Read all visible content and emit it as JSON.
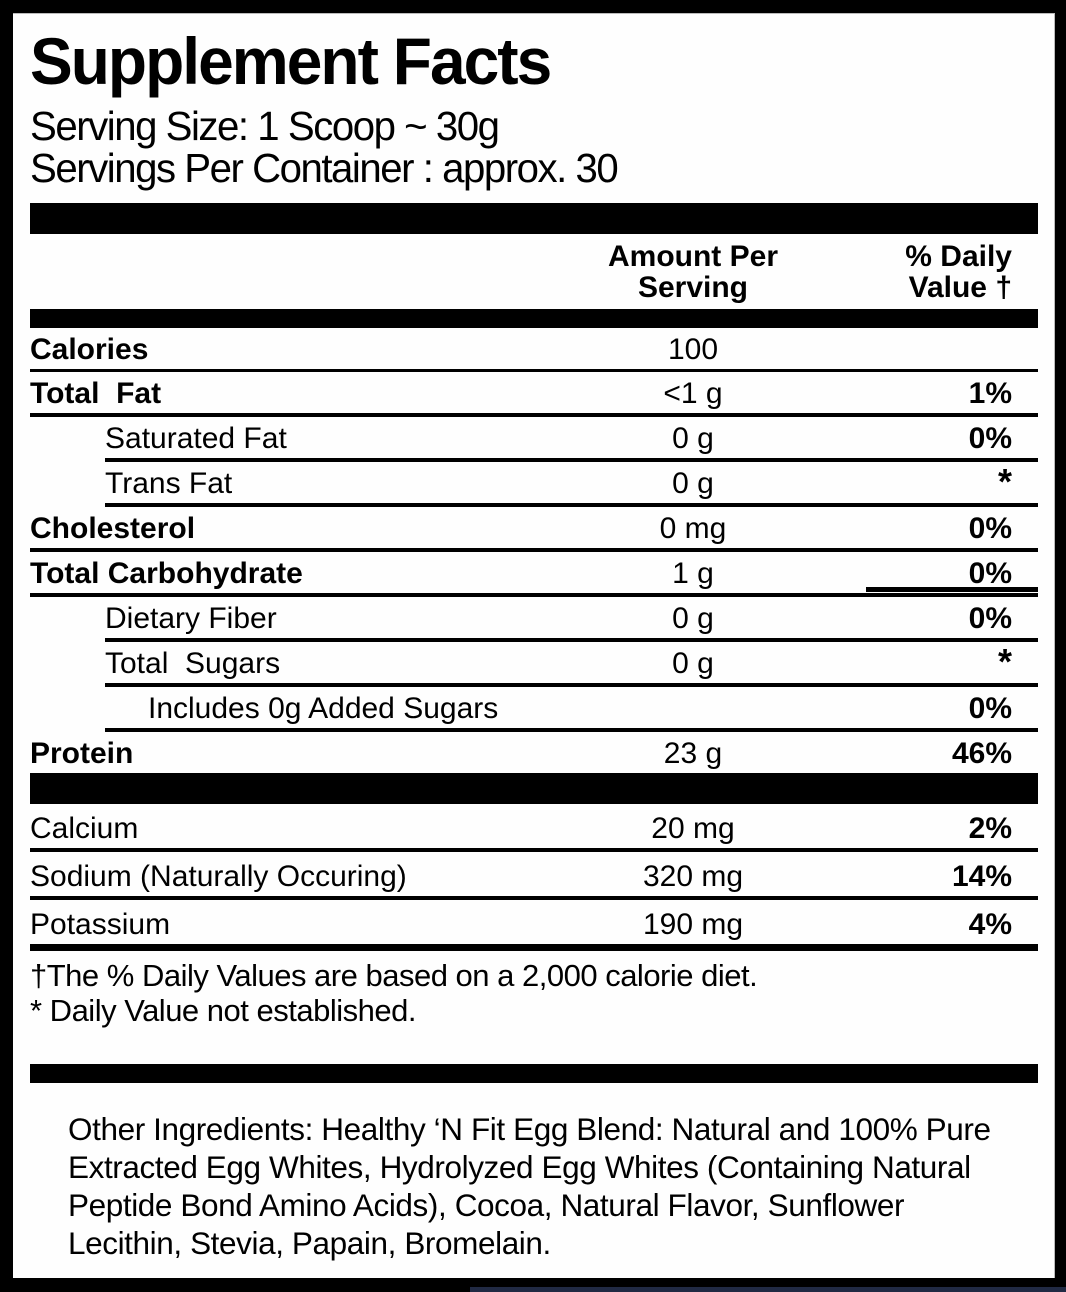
{
  "colors": {
    "ink": "#000000",
    "paper": "#fefefe",
    "bottom_strip": "#212a44"
  },
  "header": {
    "title": "Supplement Facts",
    "serving_size": "Serving Size: 1 Scoop ~ 30g",
    "servings_per_container": "Servings Per Container : approx. 30"
  },
  "columns": {
    "amount_line1": "Amount Per",
    "amount_line2": "Serving",
    "dv_line1": "% Daily",
    "dv_line2": "Value †"
  },
  "rows": [
    {
      "name": "Calories",
      "amount": "100",
      "dv": ""
    },
    {
      "name": "Total  Fat",
      "amount": "<1 g",
      "dv": "1%"
    },
    {
      "name": "Saturated Fat",
      "amount": "0 g",
      "dv": "0%"
    },
    {
      "name": "Trans Fat",
      "amount": "0 g",
      "dv": "*"
    },
    {
      "name": "Cholesterol",
      "amount": "0 mg",
      "dv": "0%"
    },
    {
      "name": "Total Carbohydrate",
      "amount": "1 g",
      "dv": "0%"
    },
    {
      "name": "Dietary Fiber",
      "amount": "0 g",
      "dv": "0%"
    },
    {
      "name": "Total  Sugars",
      "amount": "0 g",
      "dv": "*"
    },
    {
      "name": "Includes 0g Added Sugars",
      "amount": "",
      "dv": "0%"
    },
    {
      "name": "Protein",
      "amount": "23 g",
      "dv": "46%"
    },
    {
      "name": "Calcium",
      "amount": "20 mg",
      "dv": "2%"
    },
    {
      "name": "Sodium (Naturally Occuring)",
      "amount": "320 mg",
      "dv": "14%"
    },
    {
      "name": "Potassium",
      "amount": "190 mg",
      "dv": "4%"
    }
  ],
  "footnotes": {
    "daily_value": "†The % Daily Values are based on a 2,000 calorie diet.",
    "not_established": "* Daily Value not established."
  },
  "other_ingredients": "Other Ingredients: Healthy ‘N Fit Egg Blend: Natural and 100% Pure Extracted Egg Whites, Hydrolyzed Egg Whites (Containing Natural Peptide Bond Amino Acids), Cocoa, Natural Flavor, Sunflower Lecithin, Stevia, Papain, Bromelain."
}
